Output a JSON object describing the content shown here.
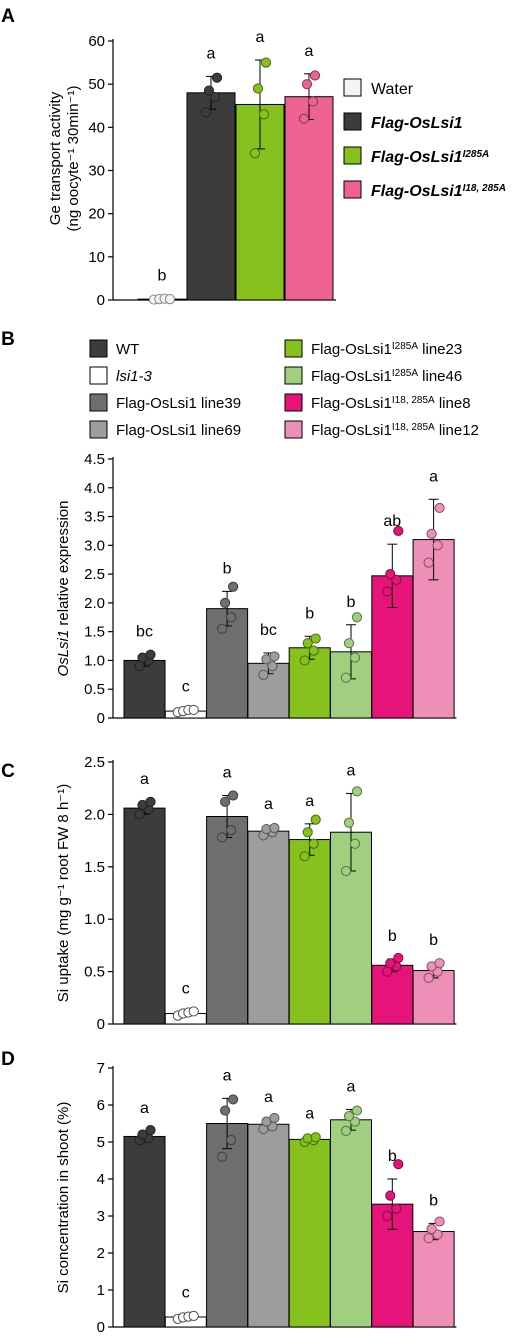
{
  "colors": {
    "water": "#f4f4f4",
    "flag_oslsi1": "#3c3c3c",
    "i285a": "#86c11e",
    "i18_285a": "#ee6290",
    "wt": "#3c3c3c",
    "lsi1_3": "#ffffff",
    "line39": "#6f6f6f",
    "line69": "#9d9d9d",
    "line23": "#86c11e",
    "line46": "#9fcf7f",
    "line8": "#e6147a",
    "line12": "#ee8fb8"
  },
  "chart_data": [
    {
      "panel": "A",
      "type": "bar",
      "ylabel_line1": "Ge transport activity",
      "ylabel_line2": "(ng oocyte⁻¹ 30min⁻¹)",
      "ylim": [
        0,
        60
      ],
      "yticks": [
        0,
        10,
        20,
        30,
        40,
        50,
        60
      ],
      "bars": [
        {
          "color_key": "water",
          "mean": 0.2,
          "err": 0.2,
          "sig": "b",
          "points": [
            0.1,
            0.2,
            0.3,
            0.2
          ]
        },
        {
          "color_key": "flag_oslsi1",
          "mean": 48,
          "err": 3.8,
          "sig": "a",
          "points": [
            43.5,
            47,
            48.5,
            51.5
          ]
        },
        {
          "color_key": "i285a",
          "mean": 45.3,
          "err": 10.3,
          "sig": "a",
          "points": [
            34,
            43,
            49,
            55
          ]
        },
        {
          "color_key": "i18_285a",
          "mean": 47.1,
          "err": 5.3,
          "sig": "a",
          "points": [
            42,
            46,
            50,
            52
          ]
        }
      ],
      "legend": [
        {
          "label": "Water",
          "sup": "",
          "color_key": "water",
          "italic": false
        },
        {
          "label": "Flag-OsLsi1",
          "sup": "",
          "color_key": "flag_oslsi1",
          "italic": true
        },
        {
          "label": "Flag-OsLsi1",
          "sup": "I285A",
          "color_key": "i285a",
          "italic": true
        },
        {
          "label": "Flag-OsLsi1",
          "sup": "I18, 285A",
          "color_key": "i18_285a",
          "italic": true
        }
      ]
    },
    {
      "panel": "B",
      "type": "bar",
      "ylabel_italic": "OsLsi1",
      "ylabel_rest": " relative expression",
      "ylim": [
        0,
        4.5
      ],
      "yticks": [
        "0",
        "0.5",
        "1.0",
        "1.5",
        "2.0",
        "2.5",
        "3.0",
        "3.5",
        "4.0",
        "4.5"
      ],
      "bars": [
        {
          "color_key": "wt",
          "mean": 1.0,
          "err": 0.1,
          "sig": "bc",
          "points": [
            0.9,
            1.0,
            1.05,
            1.1
          ]
        },
        {
          "color_key": "lsi1_3",
          "mean": 0.12,
          "err": 0.03,
          "sig": "c",
          "points": [
            0.1,
            0.12,
            0.14,
            0.14
          ]
        },
        {
          "color_key": "line39",
          "mean": 1.9,
          "err": 0.3,
          "sig": "b",
          "points": [
            1.55,
            1.75,
            2.0,
            2.28
          ]
        },
        {
          "color_key": "line69",
          "mean": 0.95,
          "err": 0.18,
          "sig": "bc",
          "points": [
            0.75,
            0.9,
            1.02,
            1.07
          ]
        },
        {
          "color_key": "line23",
          "mean": 1.22,
          "err": 0.2,
          "sig": "b",
          "points": [
            1.0,
            1.17,
            1.3,
            1.38
          ]
        },
        {
          "color_key": "line46",
          "mean": 1.15,
          "err": 0.47,
          "sig": "b",
          "points": [
            0.7,
            1.05,
            1.3,
            1.75
          ]
        },
        {
          "color_key": "line8",
          "mean": 2.47,
          "err": 0.55,
          "sig": "ab",
          "points": [
            2.2,
            2.4,
            2.5,
            3.25
          ]
        },
        {
          "color_key": "line12",
          "mean": 3.1,
          "err": 0.7,
          "sig": "a",
          "points": [
            2.7,
            3.0,
            3.2,
            3.65
          ]
        }
      ],
      "legend": [
        {
          "label": "WT",
          "sup": "",
          "color_key": "wt",
          "italic": false
        },
        {
          "label": "lsi1-3",
          "sup": "",
          "color_key": "lsi1_3",
          "italic": true
        },
        {
          "label": "Flag-OsLsi1 line39",
          "sup": "",
          "color_key": "line39",
          "italic": false
        },
        {
          "label": "Flag-OsLsi1 line69",
          "sup": "",
          "color_key": "line69",
          "italic": false
        },
        {
          "label": "Flag-OsLsi1",
          "sup": "I285A",
          "tail": " line23",
          "color_key": "line23",
          "italic": false
        },
        {
          "label": "Flag-OsLsi1",
          "sup": "I285A",
          "tail": " line46",
          "color_key": "line46",
          "italic": false
        },
        {
          "label": "Flag-OsLsi1",
          "sup": "I18, 285A",
          "tail": " line8",
          "color_key": "line8",
          "italic": false
        },
        {
          "label": "Flag-OsLsi1",
          "sup": "I18, 285A",
          "tail": " line12",
          "color_key": "line12",
          "italic": false
        }
      ]
    },
    {
      "panel": "C",
      "type": "bar",
      "ylabel": "Si uptake (mg g⁻¹ root FW 8 h⁻¹)",
      "ylim": [
        0,
        2.5
      ],
      "yticks": [
        "0",
        "0.5",
        "1.0",
        "1.5",
        "2.0",
        "2.5"
      ],
      "bars": [
        {
          "color_key": "wt",
          "mean": 2.06,
          "err": 0.06,
          "sig": "a",
          "points": [
            2.0,
            2.05,
            2.09,
            2.12
          ]
        },
        {
          "color_key": "lsi1_3",
          "mean": 0.1,
          "err": 0.02,
          "sig": "c",
          "points": [
            0.08,
            0.1,
            0.11,
            0.12
          ]
        },
        {
          "color_key": "line39",
          "mean": 1.98,
          "err": 0.2,
          "sig": "a",
          "points": [
            1.78,
            1.85,
            2.12,
            2.18
          ]
        },
        {
          "color_key": "line69",
          "mean": 1.84,
          "err": 0.04,
          "sig": "a",
          "points": [
            1.8,
            1.83,
            1.86,
            1.87
          ]
        },
        {
          "color_key": "line23",
          "mean": 1.76,
          "err": 0.15,
          "sig": "a",
          "points": [
            1.6,
            1.72,
            1.83,
            1.95
          ]
        },
        {
          "color_key": "line46",
          "mean": 1.83,
          "err": 0.37,
          "sig": "a",
          "points": [
            1.46,
            1.72,
            1.92,
            2.22
          ]
        },
        {
          "color_key": "line8",
          "mean": 0.56,
          "err": 0.06,
          "sig": "b",
          "points": [
            0.5,
            0.55,
            0.58,
            0.63
          ]
        },
        {
          "color_key": "line12",
          "mean": 0.51,
          "err": 0.07,
          "sig": "b",
          "points": [
            0.44,
            0.5,
            0.55,
            0.58
          ]
        }
      ]
    },
    {
      "panel": "D",
      "type": "bar",
      "ylabel": "Si concentration in shoot (%)",
      "ylim": [
        0,
        7
      ],
      "yticks": [
        "0",
        "1",
        "2",
        "3",
        "4",
        "5",
        "6",
        "7"
      ],
      "bars": [
        {
          "color_key": "wt",
          "mean": 5.15,
          "err": 0.15,
          "sig": "a",
          "points": [
            5.05,
            5.1,
            5.2,
            5.32
          ]
        },
        {
          "color_key": "lsi1_3",
          "mean": 0.27,
          "err": 0.04,
          "sig": "c",
          "points": [
            0.22,
            0.26,
            0.28,
            0.3
          ]
        },
        {
          "color_key": "line39",
          "mean": 5.5,
          "err": 0.68,
          "sig": "a",
          "points": [
            4.6,
            5.05,
            5.85,
            6.15
          ]
        },
        {
          "color_key": "line69",
          "mean": 5.48,
          "err": 0.12,
          "sig": "a",
          "points": [
            5.35,
            5.42,
            5.55,
            5.65
          ]
        },
        {
          "color_key": "line23",
          "mean": 5.07,
          "err": 0.08,
          "sig": "a",
          "points": [
            5.0,
            5.05,
            5.1,
            5.13
          ]
        },
        {
          "color_key": "line46",
          "mean": 5.6,
          "err": 0.28,
          "sig": "a",
          "points": [
            5.3,
            5.55,
            5.7,
            5.85
          ]
        },
        {
          "color_key": "line8",
          "mean": 3.32,
          "err": 0.68,
          "sig": "b",
          "points": [
            3.0,
            3.2,
            3.55,
            4.4
          ]
        },
        {
          "color_key": "line12",
          "mean": 2.58,
          "err": 0.22,
          "sig": "b",
          "points": [
            2.4,
            2.5,
            2.65,
            2.85
          ]
        }
      ]
    }
  ]
}
